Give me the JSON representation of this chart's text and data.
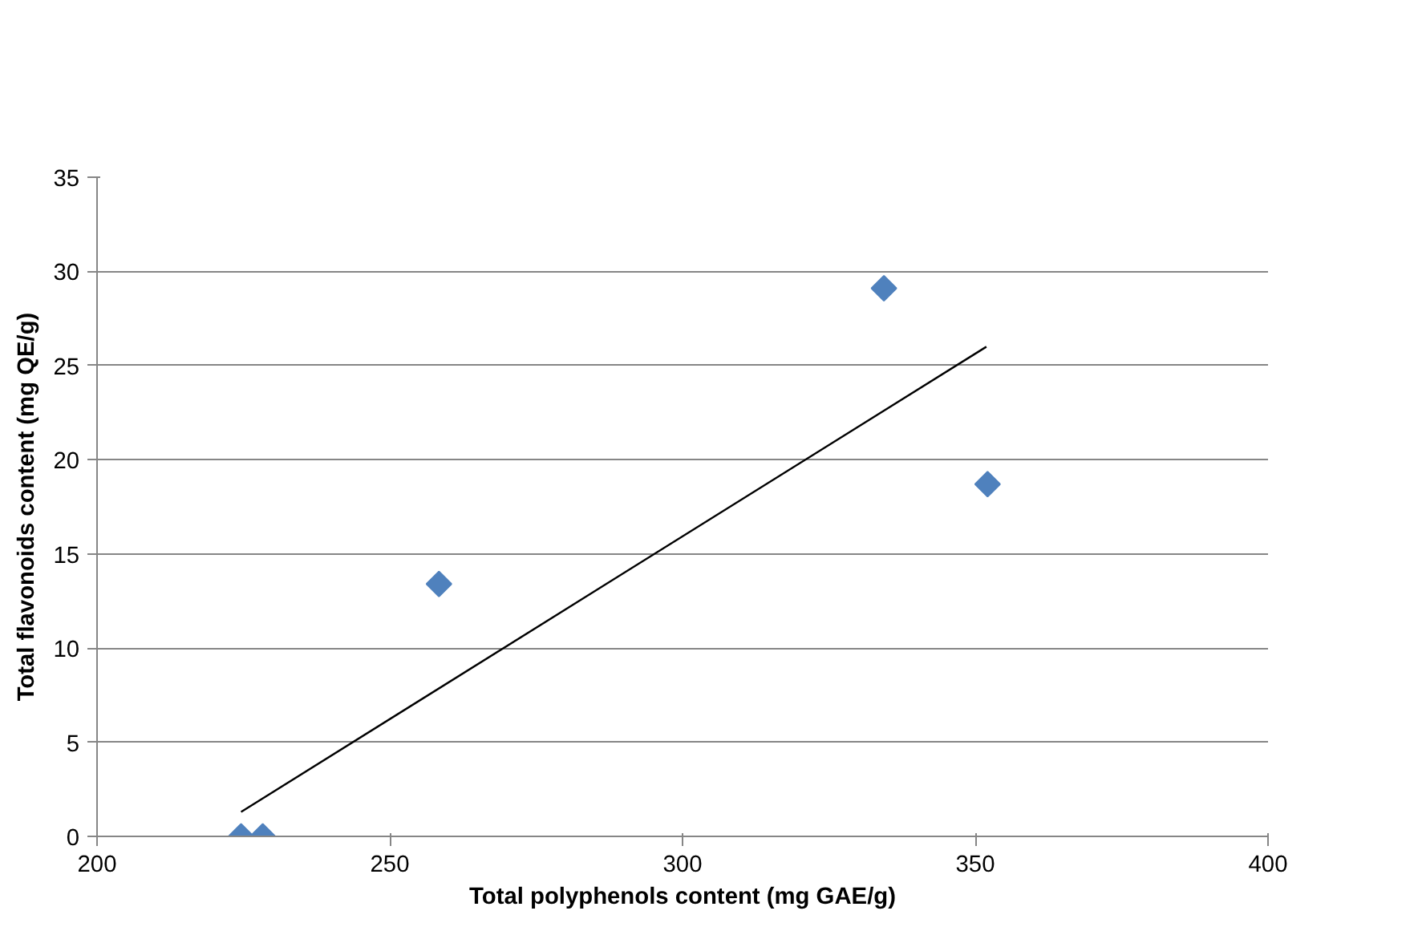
{
  "chart_data": {
    "type": "scatter",
    "xlabel": "Total polyphenols content (mg GAE/g)",
    "ylabel": "Total flavonoids content (mg QE/g)",
    "series": [
      {
        "color": "#4f81bd",
        "marker": "diamond",
        "x": [
          224.6,
          228.3,
          258.4,
          334.4,
          352.1
        ],
        "values": [
          0,
          0,
          13.4,
          29.1,
          18.7
        ]
      },
      {
        "type": "line",
        "marker": "none",
        "color": "#000000",
        "x": [
          224.6,
          351.9
        ],
        "values": [
          1.3,
          26.0
        ]
      }
    ],
    "xlim": [
      200,
      400
    ],
    "xticks": [
      200,
      250,
      300,
      350,
      400
    ],
    "ylim": [
      0,
      35
    ],
    "yticks": [
      0,
      5,
      10,
      15,
      20,
      25,
      30,
      35
    ],
    "grid": "y"
  }
}
